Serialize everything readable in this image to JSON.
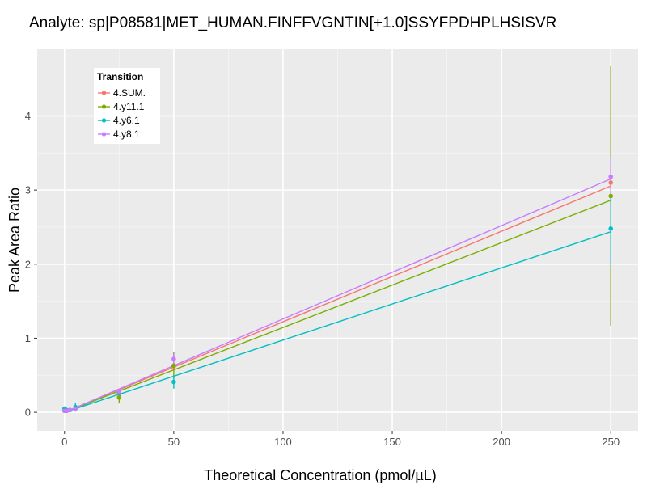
{
  "chart_data": {
    "type": "line",
    "title": "Analyte: sp|P08581|MET_HUMAN.FINFFVGNTIN[+1.0]SSYFPDHPLHSISVR",
    "xlabel": "Theoretical Concentration (pmol/µL)",
    "ylabel": "Peak Area Ratio",
    "xlim": [
      -12.5,
      262.5
    ],
    "ylim": [
      -0.25,
      4.9
    ],
    "x_ticks": [
      0,
      50,
      100,
      150,
      200,
      250
    ],
    "y_ticks": [
      0,
      1,
      2,
      3,
      4
    ],
    "grid": true,
    "legend": {
      "title": "Transition",
      "position": "top-left"
    },
    "series": [
      {
        "name": "4.SUM.",
        "color": "#F8766D",
        "fit": {
          "slope": 0.01222,
          "intercept": 0.0,
          "x_range": [
            0,
            250
          ]
        },
        "points": [
          {
            "x": 0,
            "y": 0.02,
            "err": 0.01
          },
          {
            "x": 1,
            "y": 0.02,
            "err": 0.01
          },
          {
            "x": 2.5,
            "y": 0.03,
            "err": 0.02
          },
          {
            "x": 5,
            "y": 0.05,
            "err": 0.02
          },
          {
            "x": 25,
            "y": 0.25,
            "err": 0.04
          },
          {
            "x": 50,
            "y": 0.62,
            "err": 0.05
          },
          {
            "x": 250,
            "y": 3.1,
            "err": 0.2
          }
        ]
      },
      {
        "name": "4.y11.1",
        "color": "#7CAE00",
        "fit": {
          "slope": 0.01145,
          "intercept": 0.0,
          "x_range": [
            0,
            250
          ]
        },
        "points": [
          {
            "x": 0,
            "y": 0.02,
            "err": 0.01
          },
          {
            "x": 1,
            "y": 0.02,
            "err": 0.01
          },
          {
            "x": 2.5,
            "y": 0.03,
            "err": 0.03
          },
          {
            "x": 5,
            "y": 0.05,
            "err": 0.03
          },
          {
            "x": 25,
            "y": 0.2,
            "err": 0.08
          },
          {
            "x": 50,
            "y": 0.63,
            "err": 0.18
          },
          {
            "x": 250,
            "y": 2.92,
            "err": 1.75
          }
        ]
      },
      {
        "name": "4.y6.1",
        "color": "#00BFC4",
        "fit": {
          "slope": 0.00975,
          "intercept": 0.0,
          "x_range": [
            0,
            250
          ]
        },
        "points": [
          {
            "x": 0,
            "y": 0.05,
            "err": 0.02
          },
          {
            "x": 1,
            "y": 0.03,
            "err": 0.02
          },
          {
            "x": 2.5,
            "y": 0.03,
            "err": 0.03
          },
          {
            "x": 5,
            "y": 0.07,
            "err": 0.06
          },
          {
            "x": 25,
            "y": 0.26,
            "err": 0.04
          },
          {
            "x": 50,
            "y": 0.41,
            "err": 0.09
          },
          {
            "x": 250,
            "y": 2.48,
            "err": 0.5
          }
        ]
      },
      {
        "name": "4.y8.1",
        "color": "#C77CFF",
        "fit": {
          "slope": 0.0126,
          "intercept": 0.0,
          "x_range": [
            0,
            250
          ]
        },
        "points": [
          {
            "x": 0,
            "y": 0.02,
            "err": 0.01
          },
          {
            "x": 1,
            "y": 0.02,
            "err": 0.01
          },
          {
            "x": 2.5,
            "y": 0.03,
            "err": 0.02
          },
          {
            "x": 5,
            "y": 0.05,
            "err": 0.02
          },
          {
            "x": 25,
            "y": 0.28,
            "err": 0.04
          },
          {
            "x": 50,
            "y": 0.72,
            "err": 0.08
          },
          {
            "x": 250,
            "y": 3.18,
            "err": 0.25
          }
        ]
      }
    ]
  }
}
